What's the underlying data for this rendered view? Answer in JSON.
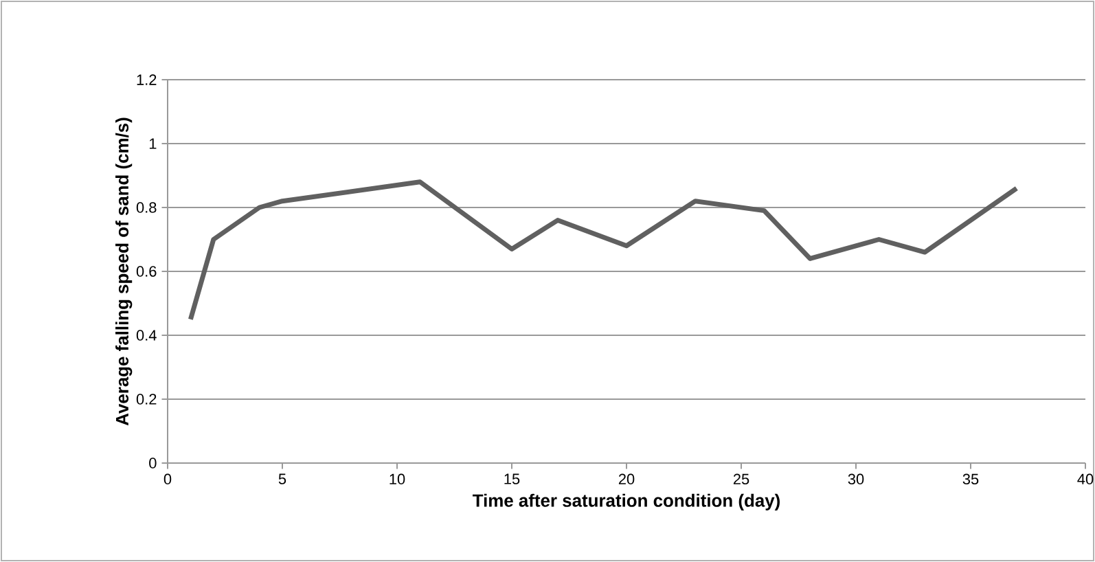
{
  "chart_data": {
    "type": "line",
    "xlabel": "Time after saturation condition (day)",
    "ylabel": "Average falling speed of sand (cm/s)",
    "x": [
      1,
      2,
      4,
      5,
      11,
      15,
      17,
      20,
      23,
      26,
      28,
      31,
      33,
      37
    ],
    "series": [
      {
        "color": "#606060",
        "values": [
          0.45,
          0.7,
          0.8,
          0.82,
          0.88,
          0.67,
          0.76,
          0.68,
          0.82,
          0.79,
          0.64,
          0.7,
          0.66,
          0.86
        ]
      }
    ],
    "xlim": [
      0,
      40
    ],
    "xticks": [
      0,
      5,
      10,
      15,
      20,
      25,
      30,
      35,
      40
    ],
    "ylim": [
      0,
      1.2
    ],
    "yticks": [
      0,
      0.2,
      0.4,
      0.6,
      0.8,
      1,
      1.2
    ],
    "grid": "y",
    "marker": "none",
    "line_style": "solid"
  }
}
